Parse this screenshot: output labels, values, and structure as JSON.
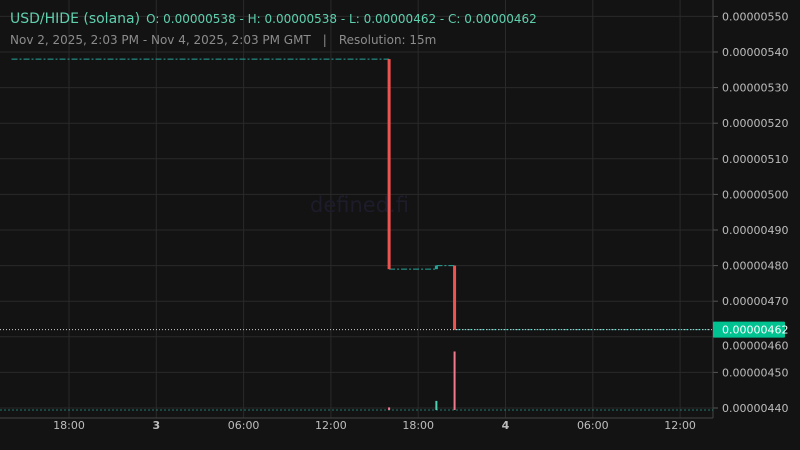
{
  "header": {
    "symbol": "USD/HIDE (solana)",
    "ohlc": "O: 0.00000538 - H: 0.00000538 - L: 0.00000462 - C: 0.00000462",
    "range": "Nov 2, 2025, 2:03 PM - Nov 4, 2025, 2:03 PM GMT",
    "separator": "|",
    "resolution": "Resolution: 15m"
  },
  "watermark": "defined.fi",
  "colors": {
    "up": "#26a69a",
    "down": "#ef5350",
    "price_tag": "#00c391",
    "background": "#131313",
    "grid": "#2a2a2a"
  },
  "chart_data": {
    "type": "candlestick",
    "y_ticks": [
      "0.00000550",
      "0.00000540",
      "0.00000530",
      "0.00000520",
      "0.00000510",
      "0.00000500",
      "0.00000490",
      "0.00000480",
      "0.00000470",
      "0.00000460",
      "0.00000450",
      "0.00000440"
    ],
    "ylim": [
      4.38e-06,
      5.52e-06
    ],
    "x_ticks": [
      {
        "t": "2025-11-02T18:00Z",
        "label": "18:00",
        "bold": false
      },
      {
        "t": "2025-11-03T00:00Z",
        "label": "3",
        "bold": true
      },
      {
        "t": "2025-11-03T06:00Z",
        "label": "06:00",
        "bold": false
      },
      {
        "t": "2025-11-03T12:00Z",
        "label": "12:00",
        "bold": false
      },
      {
        "t": "2025-11-03T18:00Z",
        "label": "18:00",
        "bold": false
      },
      {
        "t": "2025-11-04T00:00Z",
        "label": "4",
        "bold": true
      },
      {
        "t": "2025-11-04T06:00Z",
        "label": "06:00",
        "bold": false
      },
      {
        "t": "2025-11-04T12:00Z",
        "label": "12:00",
        "bold": false
      }
    ],
    "xlim": [
      "2025-11-02T14:03Z",
      "2025-11-04T15:00Z"
    ],
    "segments": [
      {
        "from": "2025-11-02T14:03Z",
        "to": "2025-11-03T16:00Z",
        "price": 5.38e-06
      },
      {
        "from": "2025-11-03T16:00Z",
        "to": "2025-11-03T19:15Z",
        "price": 4.79e-06
      },
      {
        "from": "2025-11-03T19:15Z",
        "to": "2025-11-03T20:30Z",
        "price": 4.8e-06
      },
      {
        "from": "2025-11-03T20:30Z",
        "to": "2025-11-04T14:03Z",
        "price": 4.62e-06
      }
    ],
    "candles": [
      {
        "t": "2025-11-03T16:00Z",
        "o": 5.38e-06,
        "h": 5.38e-06,
        "l": 4.79e-06,
        "c": 4.79e-06,
        "volume": 0.04
      },
      {
        "t": "2025-11-03T19:15Z",
        "o": 4.79e-06,
        "h": 4.8e-06,
        "l": 4.79e-06,
        "c": 4.8e-06,
        "volume": 0.14
      },
      {
        "t": "2025-11-03T20:30Z",
        "o": 4.8e-06,
        "h": 4.8e-06,
        "l": 4.62e-06,
        "c": 4.62e-06,
        "volume": 0.9
      }
    ],
    "last_price": "0.00000462"
  }
}
